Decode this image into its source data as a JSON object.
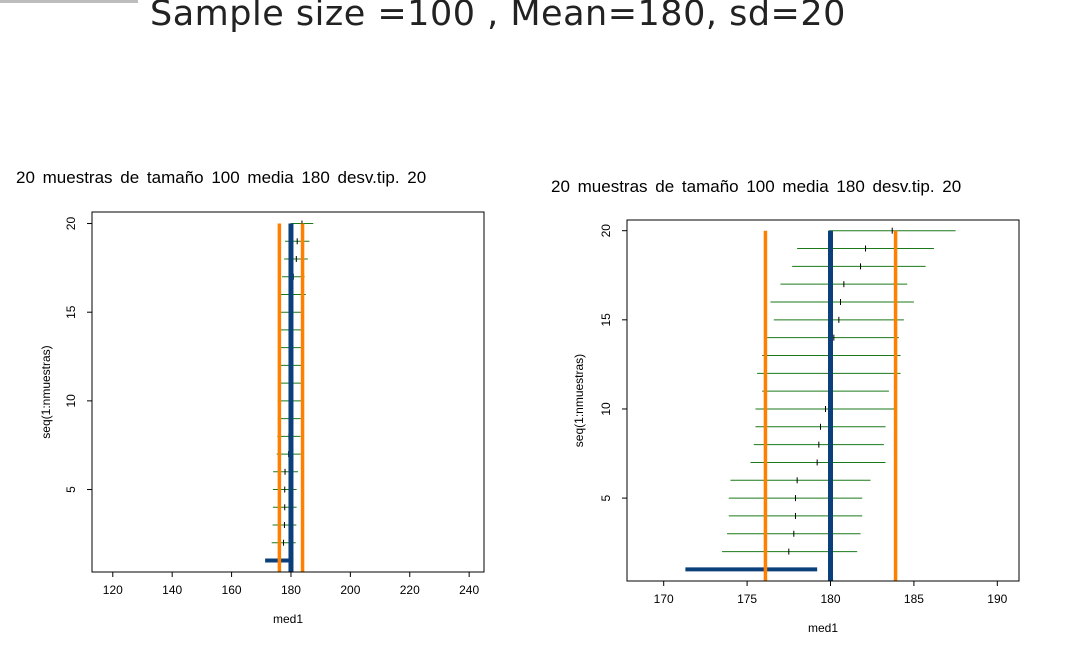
{
  "slide": {
    "title": "Sample size =100 , Mean=180, sd=20"
  },
  "colors": {
    "mean_line": "#0b3f7a",
    "limit_line": "#ff7f00",
    "interval": "#1a7a1a",
    "estimate_tick": "#000000"
  },
  "chart_data": [
    {
      "type": "interval-plot",
      "title": "20  muestras de tamaño  100  media  180  desv.tip.  20",
      "xlabel": "med1",
      "ylabel": "seq(1:nmuestras)",
      "xlim": [
        113,
        245
      ],
      "ylim": [
        0.35,
        20.65
      ],
      "xticks": [
        120,
        140,
        160,
        180,
        200,
        220,
        240
      ],
      "yticks": [
        5,
        10,
        15,
        20
      ],
      "mean": 180,
      "limits": [
        176.1,
        183.9
      ],
      "highlight_sample": {
        "y": 1,
        "x0": 171.3,
        "x1": 179.2
      },
      "samples": [
        {
          "y": 2,
          "lo": 173.5,
          "hi": 181.6,
          "est": 177.5
        },
        {
          "y": 3,
          "lo": 173.8,
          "hi": 181.8,
          "est": 177.8
        },
        {
          "y": 4,
          "lo": 173.9,
          "hi": 181.9,
          "est": 177.9
        },
        {
          "y": 5,
          "lo": 173.9,
          "hi": 181.9,
          "est": 177.9
        },
        {
          "y": 6,
          "lo": 174.0,
          "hi": 182.4,
          "est": 178.0
        },
        {
          "y": 7,
          "lo": 175.2,
          "hi": 183.3,
          "est": 179.2
        },
        {
          "y": 8,
          "lo": 175.4,
          "hi": 183.2,
          "est": 179.3
        },
        {
          "y": 9,
          "lo": 175.5,
          "hi": 183.3,
          "est": 179.4
        },
        {
          "y": 10,
          "lo": 175.5,
          "hi": 183.9,
          "est": 179.7
        },
        {
          "y": 11,
          "lo": 175.9,
          "hi": 183.5,
          "est": 179.9
        },
        {
          "y": 12,
          "lo": 175.6,
          "hi": 184.2,
          "est": 179.9
        },
        {
          "y": 13,
          "lo": 175.9,
          "hi": 184.2,
          "est": 180.1
        },
        {
          "y": 14,
          "lo": 176.2,
          "hi": 184.1,
          "est": 180.2
        },
        {
          "y": 15,
          "lo": 176.6,
          "hi": 184.4,
          "est": 180.5
        },
        {
          "y": 16,
          "lo": 176.4,
          "hi": 185.0,
          "est": 180.6
        },
        {
          "y": 17,
          "lo": 177.0,
          "hi": 184.6,
          "est": 180.8
        },
        {
          "y": 18,
          "lo": 177.7,
          "hi": 185.7,
          "est": 181.8
        },
        {
          "y": 19,
          "lo": 178.0,
          "hi": 186.2,
          "est": 182.1
        },
        {
          "y": 20,
          "lo": 179.9,
          "hi": 187.5,
          "est": 183.7
        }
      ]
    },
    {
      "type": "interval-plot",
      "title": "20  muestras de tamaño  100  media  180  desv.tip.  20",
      "xlabel": "med1",
      "ylabel": "seq(1:nmuestras)",
      "xlim": [
        167.8,
        191.3
      ],
      "ylim": [
        0.35,
        20.6
      ],
      "xticks": [
        170,
        175,
        180,
        185,
        190
      ],
      "yticks": [
        5,
        10,
        15,
        20
      ],
      "mean": 180,
      "limits": [
        176.1,
        183.9
      ],
      "highlight_sample": {
        "y": 1,
        "x0": 171.3,
        "x1": 179.2
      },
      "samples": [
        {
          "y": 2,
          "lo": 173.5,
          "hi": 181.6,
          "est": 177.5
        },
        {
          "y": 3,
          "lo": 173.8,
          "hi": 181.8,
          "est": 177.8
        },
        {
          "y": 4,
          "lo": 173.9,
          "hi": 181.9,
          "est": 177.9
        },
        {
          "y": 5,
          "lo": 173.9,
          "hi": 181.9,
          "est": 177.9
        },
        {
          "y": 6,
          "lo": 174.0,
          "hi": 182.4,
          "est": 178.0
        },
        {
          "y": 7,
          "lo": 175.2,
          "hi": 183.3,
          "est": 179.2
        },
        {
          "y": 8,
          "lo": 175.4,
          "hi": 183.2,
          "est": 179.3
        },
        {
          "y": 9,
          "lo": 175.5,
          "hi": 183.3,
          "est": 179.4
        },
        {
          "y": 10,
          "lo": 175.5,
          "hi": 183.9,
          "est": 179.7
        },
        {
          "y": 11,
          "lo": 175.9,
          "hi": 183.5,
          "est": 179.9
        },
        {
          "y": 12,
          "lo": 175.6,
          "hi": 184.2,
          "est": 179.9
        },
        {
          "y": 13,
          "lo": 175.9,
          "hi": 184.2,
          "est": 180.1
        },
        {
          "y": 14,
          "lo": 176.2,
          "hi": 184.1,
          "est": 180.2
        },
        {
          "y": 15,
          "lo": 176.6,
          "hi": 184.4,
          "est": 180.5
        },
        {
          "y": 16,
          "lo": 176.4,
          "hi": 185.0,
          "est": 180.6
        },
        {
          "y": 17,
          "lo": 177.0,
          "hi": 184.6,
          "est": 180.8
        },
        {
          "y": 18,
          "lo": 177.7,
          "hi": 185.7,
          "est": 181.8
        },
        {
          "y": 19,
          "lo": 178.0,
          "hi": 186.2,
          "est": 182.1
        },
        {
          "y": 20,
          "lo": 179.9,
          "hi": 187.5,
          "est": 183.7
        }
      ]
    }
  ]
}
